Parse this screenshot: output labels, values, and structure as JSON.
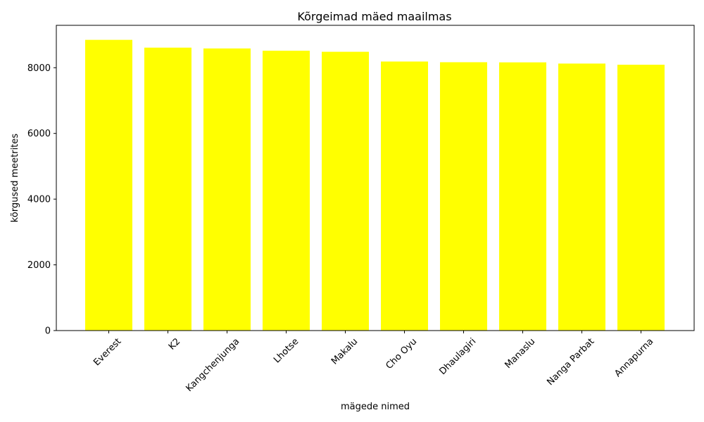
{
  "chart_data": {
    "type": "bar",
    "title": "Kõrgeimad mäed maailmas",
    "xlabel": "mägede nimed",
    "ylabel": "kõrgused meetrites",
    "categories": [
      "Everest",
      "K2",
      "Kangchenjunga",
      "Lhotse",
      "Makalu",
      "Cho Oyu",
      "Dhaulagiri",
      "Manaslu",
      "Nanga Parbat",
      "Annapurna"
    ],
    "values": [
      8848,
      8611,
      8586,
      8516,
      8485,
      8188,
      8167,
      8163,
      8126,
      8091
    ],
    "ylim": [
      0,
      9290
    ],
    "yticks": [
      0,
      2000,
      4000,
      6000,
      8000
    ],
    "bar_color": "#ffff00",
    "grid": false,
    "legend": "none"
  }
}
